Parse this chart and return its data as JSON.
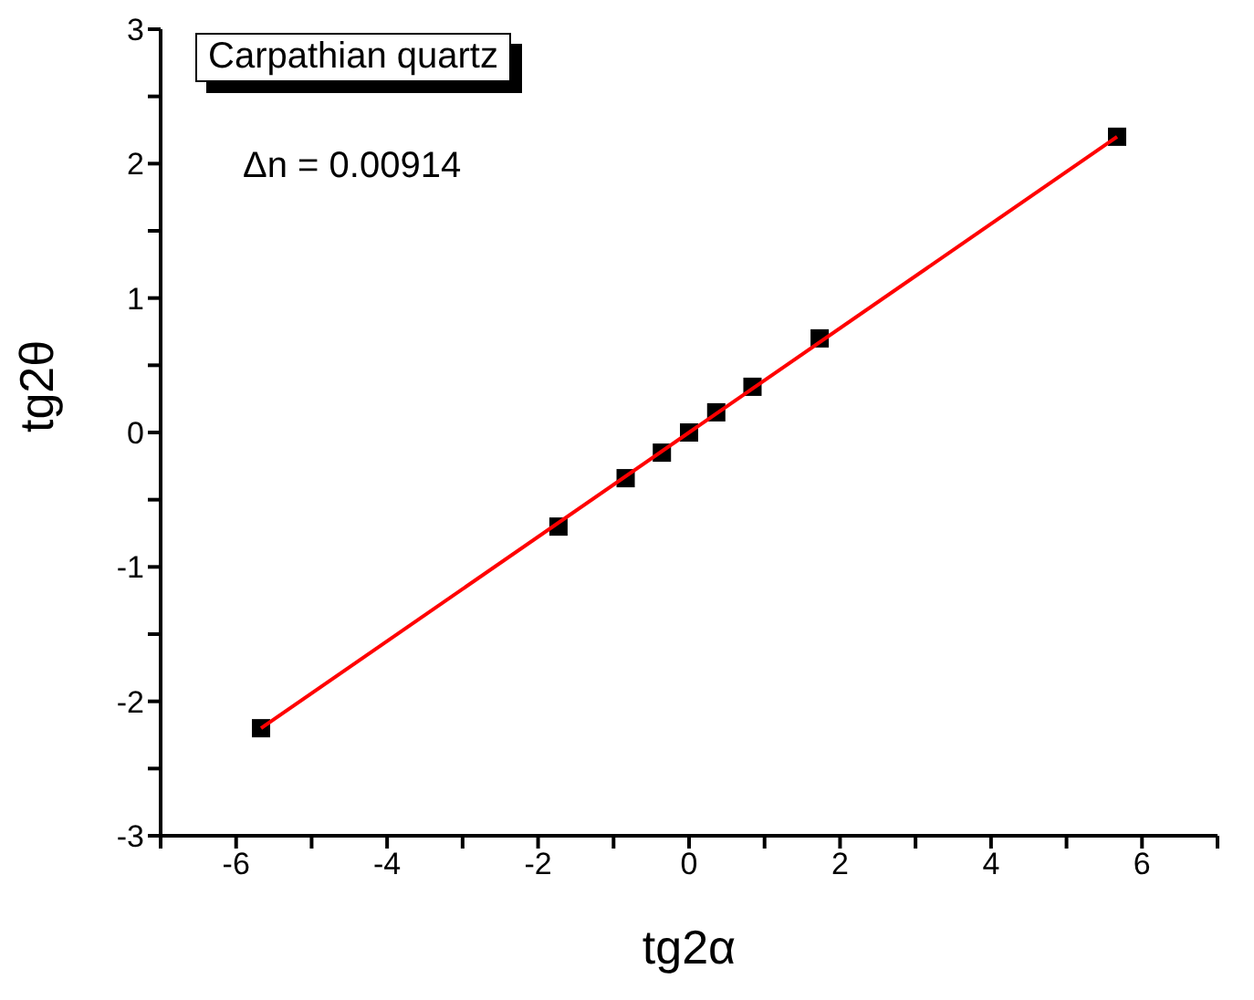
{
  "chart_data": {
    "type": "scatter",
    "xlabel": "tg2α",
    "ylabel": "tg2θ",
    "annotations": [
      "Carpathian quartz",
      "Δn = 0.00914"
    ],
    "x": [
      -5.67,
      -1.73,
      -0.84,
      -0.36,
      0,
      0.36,
      0.84,
      1.73,
      5.67
    ],
    "series": [
      {
        "color": "#000000",
        "marker": "square",
        "values": [
          -2.2,
          -0.7,
          -0.34,
          -0.15,
          0,
          0.15,
          0.34,
          0.7,
          2.2
        ]
      },
      {
        "type": "line",
        "color": "#ff0000",
        "marker": "none",
        "x": [
          -5.67,
          5.67
        ],
        "values": [
          -2.2,
          2.2
        ]
      }
    ],
    "xlim": [
      -7,
      7
    ],
    "xticks": [
      {
        "value": -7,
        "label": null
      },
      -6,
      {
        "value": -5,
        "label": null
      },
      -4,
      {
        "value": -3,
        "label": null
      },
      -2,
      {
        "value": -1,
        "label": null
      },
      0,
      {
        "value": 1,
        "label": null
      },
      2,
      {
        "value": 3,
        "label": null
      },
      4,
      {
        "value": 5,
        "label": null
      },
      6,
      {
        "value": 7,
        "label": null
      }
    ],
    "ylim": [
      -3,
      3
    ],
    "yticks": [
      -3,
      {
        "value": -2.5,
        "label": null
      },
      -2,
      {
        "value": -1.5,
        "label": null
      },
      -1,
      {
        "value": -0.5,
        "label": null
      },
      0,
      {
        "value": 0.5,
        "label": null
      },
      1,
      {
        "value": 1.5,
        "label": null
      },
      2,
      {
        "value": 2.5,
        "label": null
      },
      3
    ],
    "grid": false,
    "legend": false
  }
}
